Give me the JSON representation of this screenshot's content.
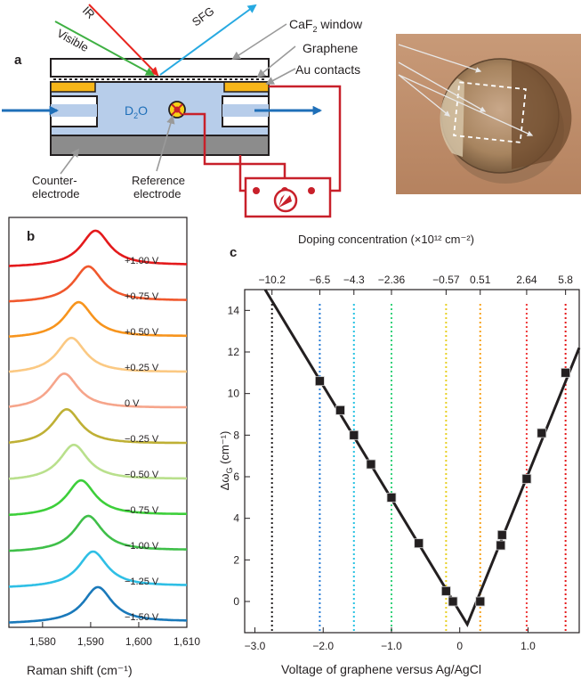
{
  "panel_labels": {
    "a": "a",
    "b": "b",
    "c": "c"
  },
  "schematic": {
    "beam_ir": "IR",
    "beam_visible": "Visible",
    "beam_sfg": "SFG",
    "window_prefix": "CaF",
    "window_sub": "2",
    "window_suffix": " window",
    "graphene": "Graphene",
    "au_contacts": "Au contacts",
    "electrolyte_main": "D",
    "electrolyte_sub": "2",
    "electrolyte_tail": "O",
    "counter_line1": "Counter-",
    "counter_line2": "electrode",
    "reference_line1": "Reference",
    "reference_line2": "electrode",
    "colors": {
      "ir": "#e8251f",
      "visible": "#3fb043",
      "sfg": "#27a9e1",
      "circuit": "#c8202a",
      "electrolyte": "#b7cdea",
      "gold": "#f7b619",
      "flow": "#1f6fb8",
      "substrate": "#8c8c8c"
    }
  },
  "chart_data": [
    {
      "type": "line",
      "panel": "b",
      "xlabel": "Raman shift (cm⁻¹)",
      "xticks": [
        1580,
        1590,
        1600,
        1610
      ],
      "xtick_labels": [
        "1,580",
        "1,590",
        "1,600",
        "1,610"
      ],
      "xlim": [
        1573,
        1610
      ],
      "series": [
        {
          "name": "+1.00 V",
          "center": 1591.0,
          "color": "#e41a1c"
        },
        {
          "name": "+0.75 V",
          "center": 1589.5,
          "color": "#f0582d"
        },
        {
          "name": "+0.50 V",
          "center": 1587.5,
          "color": "#f7941d"
        },
        {
          "name": "+0.25 V",
          "center": 1586.0,
          "color": "#fbc983"
        },
        {
          "name": "0 V",
          "center": 1584.5,
          "color": "#f6a58b"
        },
        {
          "name": "−0.25 V",
          "center": 1585.0,
          "color": "#bfb035"
        },
        {
          "name": "−0.50 V",
          "center": 1586.5,
          "color": "#b9e08c"
        },
        {
          "name": "−0.75 V",
          "center": 1588.0,
          "color": "#3dcf3a"
        },
        {
          "name": "−1.00 V",
          "center": 1589.5,
          "color": "#3fbf49"
        },
        {
          "name": "−1.25 V",
          "center": 1590.5,
          "color": "#2fbfe5"
        },
        {
          "name": "−1.50 V",
          "center": 1591.5,
          "color": "#1a79ba"
        }
      ]
    },
    {
      "type": "scatter",
      "panel": "c",
      "xlabel": "Voltage of graphene versus Ag/AgCl",
      "ylabel_main": "Δω",
      "ylabel_sub": "G",
      "ylabel_unit": " (cm⁻¹)",
      "top_xlabel": "Doping concentration (×10¹² cm⁻²)",
      "xlim": [
        -3.15,
        1.75
      ],
      "ylim": [
        -1.5,
        15
      ],
      "xticks": [
        -3.0,
        -2.0,
        -1.0,
        0.0,
        1.0
      ],
      "xtick_labels": [
        "−3.0",
        "−2.0",
        "−1.0",
        "0",
        "1.0"
      ],
      "yticks": [
        0,
        2,
        4,
        6,
        8,
        10,
        12,
        14
      ],
      "top_ticks": [
        {
          "x": -2.75,
          "label": "−10.2",
          "color": "#231f20"
        },
        {
          "x": -2.05,
          "label": "−6.5",
          "color": "#2c7fd6"
        },
        {
          "x": -1.55,
          "label": "−4.3",
          "color": "#26c2e3"
        },
        {
          "x": -1.0,
          "label": "−2.36",
          "color": "#34d27a"
        },
        {
          "x": -0.2,
          "label": "−0.57",
          "color": "#e8d025"
        },
        {
          "x": 0.3,
          "label": "0.51",
          "color": "#f7a21b"
        },
        {
          "x": 0.98,
          "label": "2.64",
          "color": "#ef3b3b"
        },
        {
          "x": 1.55,
          "label": "5.8",
          "color": "#e41a1c"
        }
      ],
      "points": [
        {
          "x": -2.05,
          "y": 10.6
        },
        {
          "x": -1.75,
          "y": 9.2
        },
        {
          "x": -1.55,
          "y": 8.0
        },
        {
          "x": -1.3,
          "y": 6.6
        },
        {
          "x": -1.0,
          "y": 5.0
        },
        {
          "x": -0.6,
          "y": 2.8
        },
        {
          "x": -0.2,
          "y": 0.5
        },
        {
          "x": -0.1,
          "y": 0.0
        },
        {
          "x": 0.3,
          "y": 0.0
        },
        {
          "x": 0.6,
          "y": 2.7
        },
        {
          "x": 0.62,
          "y": 3.2
        },
        {
          "x": 0.98,
          "y": 5.9
        },
        {
          "x": 1.2,
          "y": 8.1
        },
        {
          "x": 1.55,
          "y": 11.0
        }
      ],
      "fit_line": [
        {
          "x": -2.85,
          "y": 15.0
        },
        {
          "x": 0.11,
          "y": -1.1
        },
        {
          "x": 1.75,
          "y": 12.2
        }
      ]
    }
  ]
}
